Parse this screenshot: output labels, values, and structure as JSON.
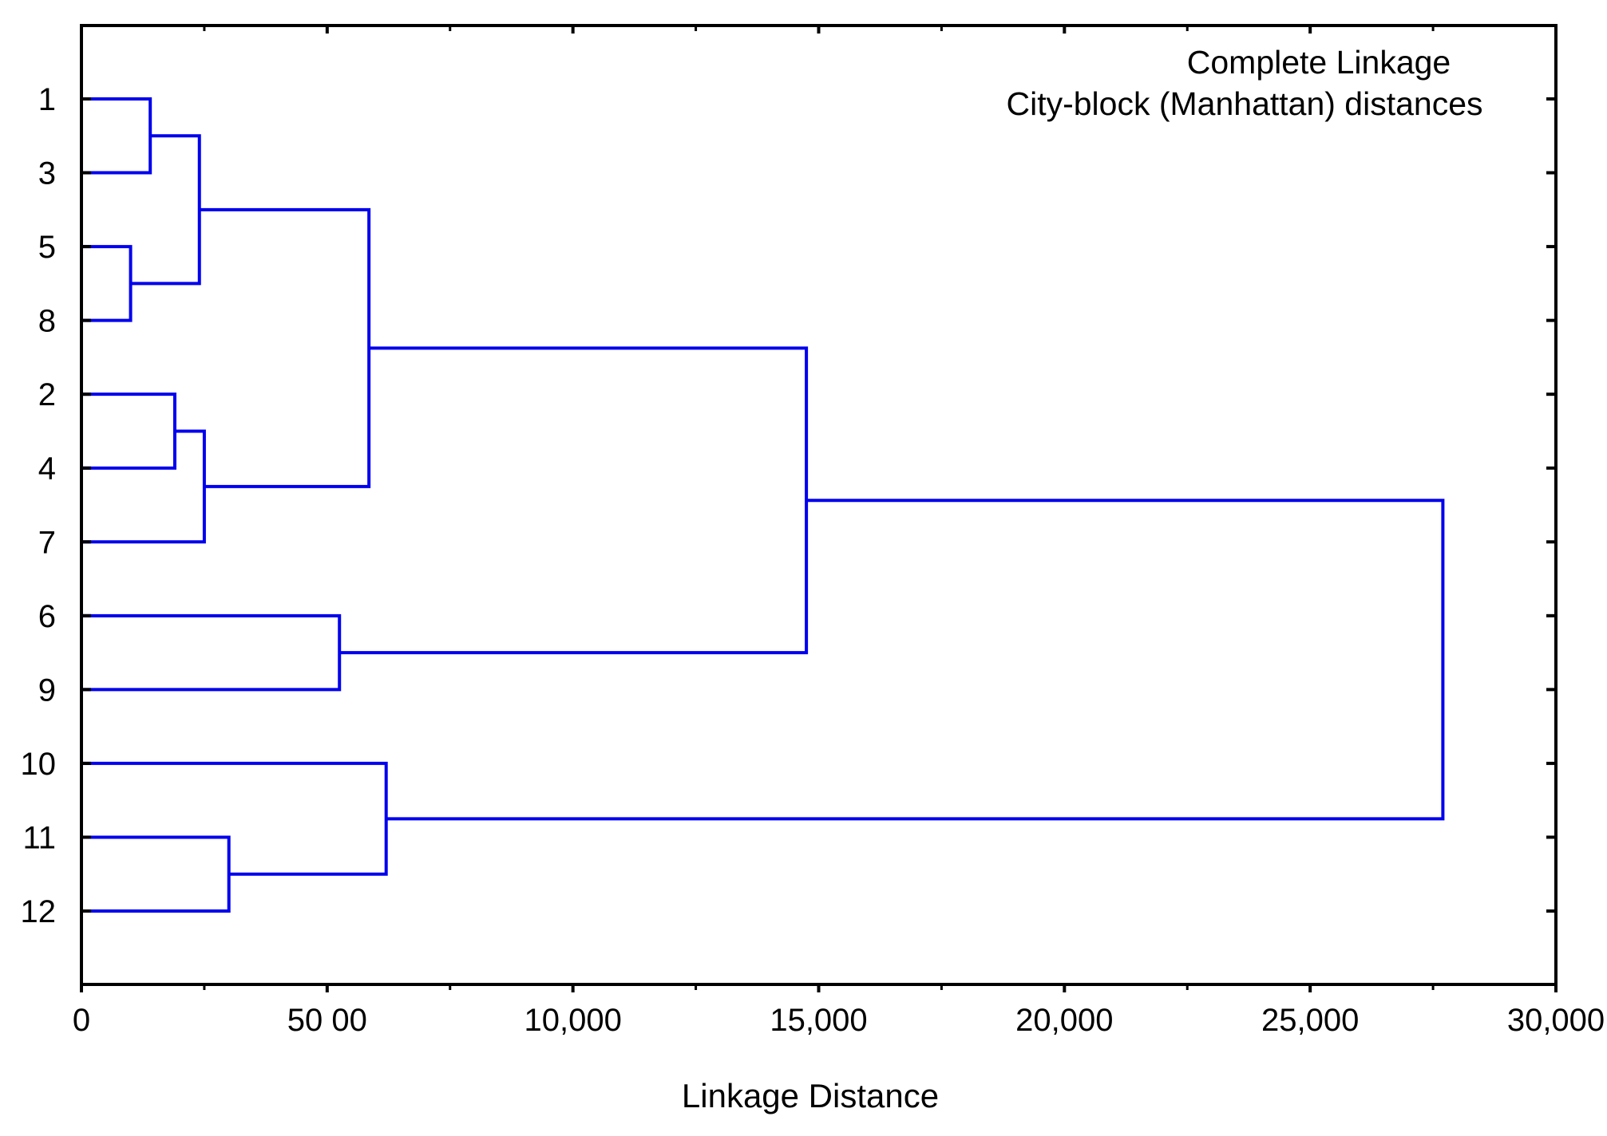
{
  "chart_data": {
    "type": "dendrogram",
    "orientation": "horizontal",
    "title": "",
    "annotation_lines": [
      "Complete Linkage",
      "City-block (Manhattan) distances"
    ],
    "annotation_placement": "top-right",
    "xlabel": "Linkage Distance",
    "ylabel": "",
    "xlim": [
      0,
      30000
    ],
    "x_ticks": [
      0,
      5000,
      10000,
      15000,
      20000,
      25000,
      30000
    ],
    "x_tick_labels": [
      "0",
      "50 00",
      "10,000",
      "15,000",
      "20,000",
      "25,000",
      "30,000"
    ],
    "x_minor_step": 2500,
    "grid": false,
    "leaf_order": [
      "1",
      "3",
      "5",
      "8",
      "2",
      "4",
      "7",
      "6",
      "9",
      "10",
      "11",
      "12"
    ],
    "merges": [
      {
        "a": "1",
        "b": "3",
        "height": 1400,
        "id": "c13"
      },
      {
        "a": "5",
        "b": "8",
        "height": 1000,
        "id": "c58"
      },
      {
        "a": "c13",
        "b": "c58",
        "height": 2400,
        "id": "c1358"
      },
      {
        "a": "2",
        "b": "4",
        "height": 1900,
        "id": "c24"
      },
      {
        "a": "c24",
        "b": "7",
        "height": 2500,
        "id": "c247"
      },
      {
        "a": "c1358",
        "b": "c247",
        "height": 5850,
        "id": "cA"
      },
      {
        "a": "6",
        "b": "9",
        "height": 5250,
        "id": "c69"
      },
      {
        "a": "cA",
        "b": "c69",
        "height": 14750,
        "id": "cB"
      },
      {
        "a": "11",
        "b": "12",
        "height": 3000,
        "id": "c1112"
      },
      {
        "a": "10",
        "b": "c1112",
        "height": 6200,
        "id": "cC"
      },
      {
        "a": "cB",
        "b": "cC",
        "height": 27700,
        "id": "root"
      }
    ],
    "line_color": "#0000ee",
    "axis_color": "#000000"
  }
}
